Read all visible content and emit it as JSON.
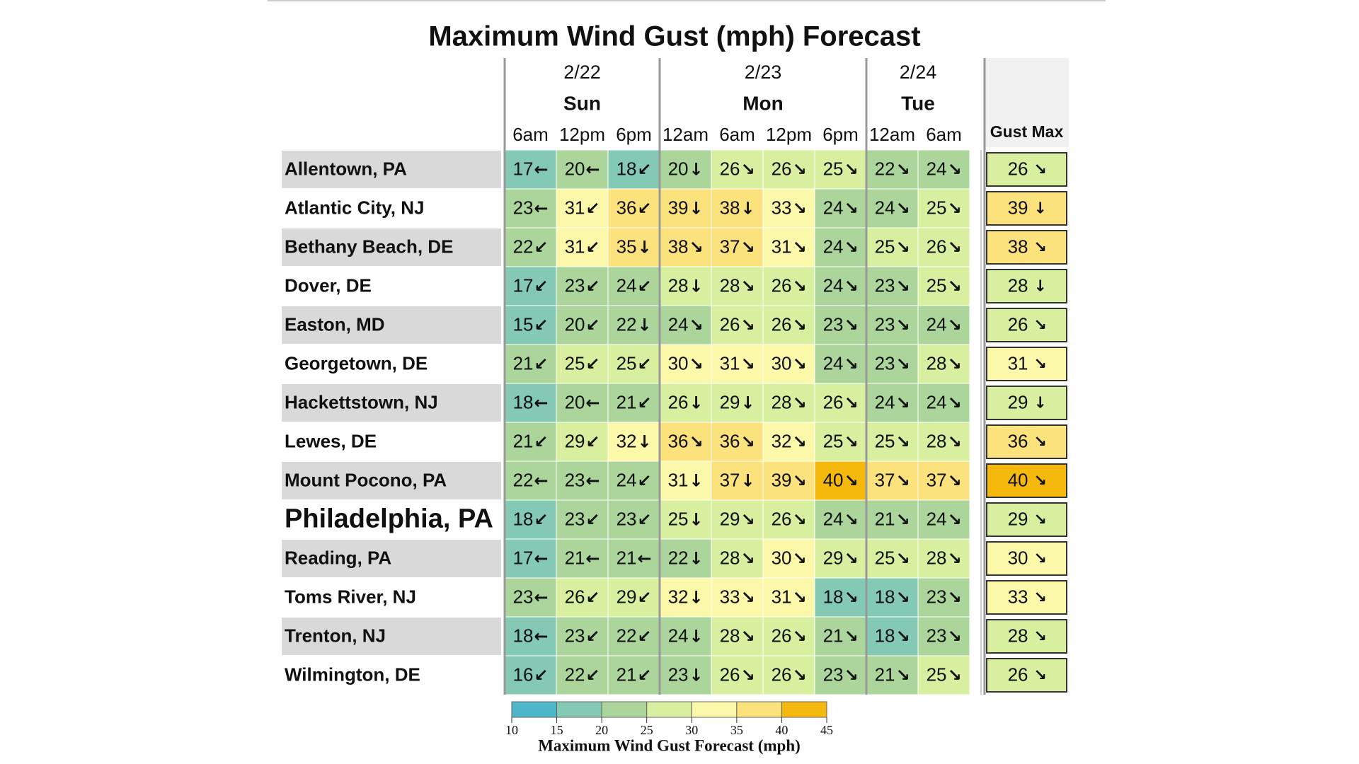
{
  "title": "Maximum Wind Gust (mph) Forecast",
  "days": [
    {
      "date": "2/22",
      "day": "Sun",
      "times": [
        "6am",
        "12pm",
        "6pm"
      ]
    },
    {
      "date": "2/23",
      "day": "Mon",
      "times": [
        "12am",
        "6am",
        "12pm",
        "6pm"
      ]
    },
    {
      "date": "2/24",
      "day": "Tue",
      "times": [
        "12am",
        "6am"
      ]
    }
  ],
  "max_header": "Gust Max",
  "table": {
    "rows": [
      {
        "name": "Allentown, PA",
        "cells": [
          [
            17,
            "←"
          ],
          [
            20,
            "←"
          ],
          [
            18,
            "↙"
          ],
          [
            20,
            "↓"
          ],
          [
            26,
            "↘"
          ],
          [
            26,
            "↘"
          ],
          [
            25,
            "↘"
          ],
          [
            22,
            "↘"
          ],
          [
            24,
            "↘"
          ]
        ],
        "max": [
          26,
          "↘"
        ]
      },
      {
        "name": "Atlantic City, NJ",
        "cells": [
          [
            23,
            "←"
          ],
          [
            31,
            "↙"
          ],
          [
            36,
            "↙"
          ],
          [
            39,
            "↓"
          ],
          [
            38,
            "↓"
          ],
          [
            33,
            "↘"
          ],
          [
            24,
            "↘"
          ],
          [
            24,
            "↘"
          ],
          [
            25,
            "↘"
          ]
        ],
        "max": [
          39,
          "↓"
        ]
      },
      {
        "name": "Bethany Beach, DE",
        "cells": [
          [
            22,
            "↙"
          ],
          [
            31,
            "↙"
          ],
          [
            35,
            "↓"
          ],
          [
            38,
            "↘"
          ],
          [
            37,
            "↘"
          ],
          [
            31,
            "↘"
          ],
          [
            24,
            "↘"
          ],
          [
            25,
            "↘"
          ],
          [
            26,
            "↘"
          ]
        ],
        "max": [
          38,
          "↘"
        ]
      },
      {
        "name": "Dover, DE",
        "cells": [
          [
            17,
            "↙"
          ],
          [
            23,
            "↙"
          ],
          [
            24,
            "↙"
          ],
          [
            28,
            "↓"
          ],
          [
            28,
            "↘"
          ],
          [
            26,
            "↘"
          ],
          [
            24,
            "↘"
          ],
          [
            23,
            "↘"
          ],
          [
            25,
            "↘"
          ]
        ],
        "max": [
          28,
          "↓"
        ]
      },
      {
        "name": "Easton, MD",
        "cells": [
          [
            15,
            "↙"
          ],
          [
            20,
            "↙"
          ],
          [
            22,
            "↓"
          ],
          [
            24,
            "↘"
          ],
          [
            26,
            "↘"
          ],
          [
            26,
            "↘"
          ],
          [
            23,
            "↘"
          ],
          [
            23,
            "↘"
          ],
          [
            24,
            "↘"
          ]
        ],
        "max": [
          26,
          "↘"
        ]
      },
      {
        "name": "Georgetown, DE",
        "cells": [
          [
            21,
            "↙"
          ],
          [
            25,
            "↙"
          ],
          [
            25,
            "↙"
          ],
          [
            30,
            "↘"
          ],
          [
            31,
            "↘"
          ],
          [
            30,
            "↘"
          ],
          [
            24,
            "↘"
          ],
          [
            23,
            "↘"
          ],
          [
            28,
            "↘"
          ]
        ],
        "max": [
          31,
          "↘"
        ]
      },
      {
        "name": "Hackettstown, NJ",
        "cells": [
          [
            18,
            "←"
          ],
          [
            20,
            "←"
          ],
          [
            21,
            "↙"
          ],
          [
            26,
            "↓"
          ],
          [
            29,
            "↓"
          ],
          [
            28,
            "↘"
          ],
          [
            26,
            "↘"
          ],
          [
            24,
            "↘"
          ],
          [
            24,
            "↘"
          ]
        ],
        "max": [
          29,
          "↓"
        ]
      },
      {
        "name": "Lewes, DE",
        "cells": [
          [
            21,
            "↙"
          ],
          [
            29,
            "↙"
          ],
          [
            32,
            "↓"
          ],
          [
            36,
            "↘"
          ],
          [
            36,
            "↘"
          ],
          [
            32,
            "↘"
          ],
          [
            25,
            "↘"
          ],
          [
            25,
            "↘"
          ],
          [
            28,
            "↘"
          ]
        ],
        "max": [
          36,
          "↘"
        ]
      },
      {
        "name": "Mount Pocono, PA",
        "cells": [
          [
            22,
            "←"
          ],
          [
            23,
            "←"
          ],
          [
            24,
            "↙"
          ],
          [
            31,
            "↓"
          ],
          [
            37,
            "↓"
          ],
          [
            39,
            "↘"
          ],
          [
            40,
            "↘"
          ],
          [
            37,
            "↘"
          ],
          [
            37,
            "↘"
          ]
        ],
        "max": [
          40,
          "↘"
        ]
      },
      {
        "name": "Philadelphia, PA",
        "cells": [
          [
            18,
            "↙"
          ],
          [
            23,
            "↙"
          ],
          [
            23,
            "↙"
          ],
          [
            25,
            "↓"
          ],
          [
            29,
            "↘"
          ],
          [
            26,
            "↘"
          ],
          [
            24,
            "↘"
          ],
          [
            21,
            "↘"
          ],
          [
            24,
            "↘"
          ]
        ],
        "max": [
          29,
          "↘"
        ]
      },
      {
        "name": "Reading, PA",
        "cells": [
          [
            17,
            "←"
          ],
          [
            21,
            "←"
          ],
          [
            21,
            "←"
          ],
          [
            22,
            "↓"
          ],
          [
            28,
            "↘"
          ],
          [
            30,
            "↘"
          ],
          [
            29,
            "↘"
          ],
          [
            25,
            "↘"
          ],
          [
            28,
            "↘"
          ]
        ],
        "max": [
          30,
          "↘"
        ]
      },
      {
        "name": "Toms River, NJ",
        "cells": [
          [
            23,
            "←"
          ],
          [
            26,
            "↙"
          ],
          [
            29,
            "↙"
          ],
          [
            32,
            "↓"
          ],
          [
            33,
            "↘"
          ],
          [
            31,
            "↘"
          ],
          [
            18,
            "↘"
          ],
          [
            18,
            "↘"
          ],
          [
            23,
            "↘"
          ]
        ],
        "max": [
          33,
          "↘"
        ]
      },
      {
        "name": "Trenton, NJ",
        "cells": [
          [
            18,
            "←"
          ],
          [
            23,
            "↙"
          ],
          [
            22,
            "↙"
          ],
          [
            24,
            "↓"
          ],
          [
            28,
            "↘"
          ],
          [
            26,
            "↘"
          ],
          [
            21,
            "↘"
          ],
          [
            18,
            "↘"
          ],
          [
            23,
            "↘"
          ]
        ],
        "max": [
          28,
          "↘"
        ]
      },
      {
        "name": "Wilmington, DE",
        "cells": [
          [
            16,
            "↙"
          ],
          [
            22,
            "↙"
          ],
          [
            21,
            "↙"
          ],
          [
            23,
            "↓"
          ],
          [
            26,
            "↘"
          ],
          [
            26,
            "↘"
          ],
          [
            23,
            "↘"
          ],
          [
            21,
            "↘"
          ],
          [
            25,
            "↘"
          ]
        ],
        "max": [
          26,
          "↘"
        ]
      }
    ]
  },
  "legend": {
    "title": "Maximum Wind Gust Forecast (mph)",
    "ticks": [
      10,
      15,
      20,
      25,
      30,
      35,
      40,
      45
    ],
    "colors": [
      "#4eb6c9",
      "#84c9b4",
      "#acd59c",
      "#d8efa0",
      "#fbf8a9",
      "#fbe27c",
      "#f5b80c"
    ]
  }
}
